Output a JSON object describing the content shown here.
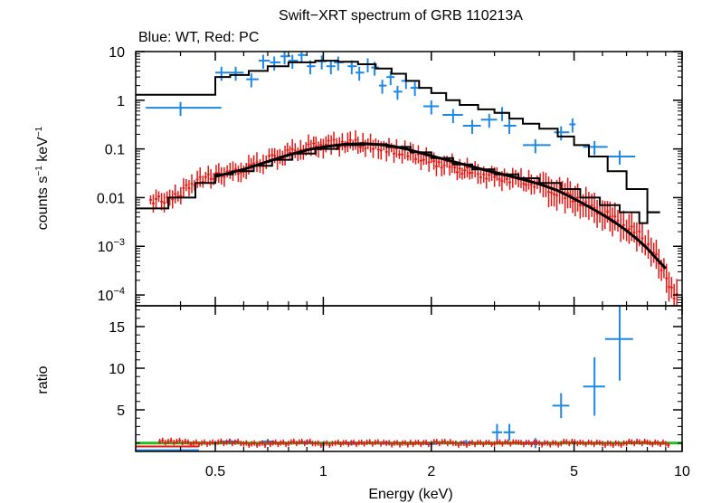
{
  "title": "Swift−XRT spectrum of GRB 110213A",
  "subtitle": "Blue: WT, Red: PC",
  "colors": {
    "wt": "#1e88e5",
    "pc": "#e8140f",
    "model": "#000000",
    "unity": "#22bb22",
    "axis": "#000000"
  },
  "chart_data": [
    {
      "type": "scatter",
      "panel": "spectrum",
      "xlabel": "Energy (keV)",
      "ylabel_main": "counts s",
      "ylabel_sup1": "−1",
      "ylabel_mid": " keV",
      "ylabel_sup2": "−1",
      "xscale": "log",
      "yscale": "log",
      "xlim": [
        0.3,
        10
      ],
      "ylim": [
        6e-05,
        10
      ],
      "yticks": [
        {
          "v": 10,
          "label": "10"
        },
        {
          "v": 1,
          "label": "1"
        },
        {
          "v": 0.1,
          "label": "0.1"
        },
        {
          "v": 0.01,
          "label": "0.01"
        },
        {
          "v": 0.001,
          "base": "10",
          "exp": "−3"
        },
        {
          "v": 0.0001,
          "base": "10",
          "exp": "−4"
        }
      ],
      "series": [
        {
          "name": "WT",
          "x": [
            0.4,
            0.52,
            0.57,
            0.63,
            0.68,
            0.73,
            0.78,
            0.82,
            0.87,
            0.92,
            0.99,
            1.05,
            1.1,
            1.2,
            1.26,
            1.33,
            1.39,
            1.46,
            1.54,
            1.61,
            1.7,
            1.8,
            2.0,
            2.3,
            2.6,
            2.9,
            3.15,
            3.3,
            3.9,
            4.6,
            4.95,
            5.7,
            6.7
          ],
          "y": [
            0.7,
            3.7,
            3.7,
            2.7,
            6.5,
            6.0,
            8.0,
            6.5,
            8.5,
            5.0,
            6.3,
            5.0,
            6.0,
            5.0,
            3.7,
            5.5,
            4.7,
            2.0,
            3.0,
            1.5,
            2.5,
            1.8,
            0.75,
            0.5,
            0.3,
            0.4,
            0.55,
            0.3,
            0.12,
            0.22,
            0.32,
            0.11,
            0.07
          ],
          "xerr_lo": [
            0.08,
            0.02,
            0.02,
            0.02,
            0.02,
            0.02,
            0.02,
            0.02,
            0.02,
            0.02,
            0.03,
            0.03,
            0.03,
            0.03,
            0.03,
            0.03,
            0.03,
            0.03,
            0.04,
            0.04,
            0.05,
            0.05,
            0.1,
            0.15,
            0.15,
            0.15,
            0.12,
            0.12,
            0.3,
            0.2,
            0.1,
            0.4,
            0.6
          ],
          "xerr_hi": [
            0.12,
            0.03,
            0.03,
            0.03,
            0.03,
            0.03,
            0.03,
            0.03,
            0.03,
            0.03,
            0.03,
            0.03,
            0.04,
            0.04,
            0.04,
            0.04,
            0.04,
            0.04,
            0.04,
            0.05,
            0.05,
            0.06,
            0.1,
            0.15,
            0.15,
            0.15,
            0.12,
            0.15,
            0.4,
            0.25,
            0.1,
            0.5,
            0.7
          ],
          "yerr_frac": 0.32
        },
        {
          "name": "PC",
          "x": [
            0.33,
            0.38,
            0.43,
            0.47,
            0.52,
            0.56,
            0.6,
            0.64,
            0.68,
            0.72,
            0.77,
            0.82,
            0.88,
            0.94,
            1.0,
            1.07,
            1.15,
            1.23,
            1.31,
            1.4,
            1.5,
            1.6,
            1.72,
            1.84,
            1.97,
            2.1,
            2.25,
            2.4,
            2.6,
            2.8,
            3.0,
            3.25,
            3.5,
            3.8,
            4.1,
            4.4,
            4.8,
            5.2,
            5.6,
            6.0,
            6.5,
            7.0,
            7.6,
            8.2,
            8.9,
            9.5
          ],
          "y": [
            0.009,
            0.009,
            0.02,
            0.025,
            0.03,
            0.032,
            0.038,
            0.045,
            0.055,
            0.065,
            0.075,
            0.085,
            0.1,
            0.11,
            0.12,
            0.13,
            0.13,
            0.13,
            0.12,
            0.11,
            0.1,
            0.09,
            0.08,
            0.07,
            0.058,
            0.05,
            0.045,
            0.038,
            0.033,
            0.03,
            0.026,
            0.025,
            0.022,
            0.02,
            0.017,
            0.013,
            0.011,
            0.008,
            0.006,
            0.005,
            0.0035,
            0.0025,
            0.0017,
            0.0009,
            0.0003,
            0.0001
          ],
          "yerr_frac": 0.35
        },
        {
          "name": "model-WT",
          "type": "step",
          "x": [
            0.3,
            0.5,
            0.55,
            0.62,
            0.7,
            0.8,
            0.95,
            1.1,
            1.25,
            1.4,
            1.55,
            1.7,
            1.85,
            2.0,
            2.2,
            2.4,
            2.7,
            3.0,
            3.3,
            3.6,
            4.0,
            4.5,
            5.0,
            5.5,
            6.2,
            7.0,
            8.0
          ],
          "y": [
            1.3,
            3.0,
            3.3,
            4.0,
            5.0,
            6.0,
            6.5,
            6.2,
            5.5,
            4.5,
            3.5,
            2.5,
            1.8,
            1.4,
            1.0,
            0.8,
            0.65,
            0.55,
            0.42,
            0.33,
            0.26,
            0.18,
            0.12,
            0.07,
            0.035,
            0.015,
            0.005
          ]
        },
        {
          "name": "model-PC",
          "type": "step",
          "x": [
            0.3,
            0.37,
            0.44,
            0.5,
            0.56,
            0.64,
            0.72,
            0.82,
            0.95,
            1.1,
            1.3,
            1.5,
            1.75,
            2.0,
            2.3,
            2.6,
            3.0,
            3.5,
            4.0,
            4.6,
            5.2,
            5.9,
            6.7,
            7.6,
            8.0
          ],
          "y": [
            0.006,
            0.01,
            0.02,
            0.03,
            0.035,
            0.045,
            0.06,
            0.08,
            0.1,
            0.12,
            0.125,
            0.11,
            0.085,
            0.065,
            0.048,
            0.038,
            0.03,
            0.025,
            0.02,
            0.015,
            0.01,
            0.007,
            0.005,
            0.003,
            0.005
          ]
        },
        {
          "name": "model-PC-smooth",
          "type": "line",
          "x": [
            0.5,
            0.6,
            0.7,
            0.8,
            0.9,
            1.0,
            1.15,
            1.3,
            1.5,
            1.7,
            2.0,
            2.3,
            2.7,
            3.0,
            3.5,
            4.0,
            4.5,
            5.0,
            5.5,
            6.0,
            6.5,
            7.0,
            7.5,
            8.0,
            8.5,
            9.0
          ],
          "y": [
            0.027,
            0.038,
            0.055,
            0.075,
            0.095,
            0.11,
            0.125,
            0.128,
            0.12,
            0.1,
            0.072,
            0.055,
            0.04,
            0.033,
            0.025,
            0.019,
            0.014,
            0.0095,
            0.0065,
            0.0045,
            0.0031,
            0.0021,
            0.0014,
            0.0009,
            0.00055,
            0.00035
          ]
        }
      ]
    },
    {
      "type": "scatter",
      "panel": "ratio",
      "ylabel": "ratio",
      "xlabel": "Energy (keV)",
      "xscale": "log",
      "xlim": [
        0.3,
        10
      ],
      "ylim": [
        0,
        17.5
      ],
      "xticks": [
        {
          "v": 0.5,
          "label": "0.5"
        },
        {
          "v": 1,
          "label": "1"
        },
        {
          "v": 2,
          "label": "2"
        },
        {
          "v": 5,
          "label": "5"
        },
        {
          "v": 10,
          "label": "10"
        }
      ],
      "yticks": [
        {
          "v": 5,
          "label": "5"
        },
        {
          "v": 10,
          "label": "10"
        },
        {
          "v": 15,
          "label": "15"
        }
      ],
      "series": [
        {
          "name": "WT-ratio",
          "x": [
            3.05,
            3.3,
            3.9,
            4.6,
            5.7,
            6.7,
            0.55,
            0.7,
            0.9,
            1.2,
            1.5,
            2.0,
            2.5
          ],
          "y": [
            2.3,
            2.3,
            1.0,
            5.5,
            7.8,
            13.5,
            1.2,
            1.2,
            1.1,
            1.0,
            1.0,
            0.9,
            1.1
          ],
          "yerr": [
            1.0,
            1.0,
            0.6,
            1.5,
            3.5,
            5.0,
            0.3,
            0.3,
            0.3,
            0.3,
            0.3,
            0.3,
            0.3
          ],
          "xerr": [
            0.1,
            0.12,
            0.3,
            0.25,
            0.4,
            0.6,
            0.03,
            0.03,
            0.03,
            0.04,
            0.04,
            0.08,
            0.1
          ]
        },
        {
          "name": "PC-ratio",
          "x": [
            0.35,
            0.42,
            0.5,
            0.6,
            0.7,
            0.8,
            0.95,
            1.1,
            1.3,
            1.5,
            1.75,
            2.0,
            2.3,
            2.6,
            3.0,
            3.5,
            4.0,
            4.6,
            5.2,
            6.0,
            7.0,
            8.0,
            9.0
          ],
          "y": [
            1.2,
            1.0,
            1.1,
            0.9,
            1.0,
            1.1,
            0.9,
            1.0,
            1.05,
            0.95,
            1.0,
            1.1,
            0.9,
            1.0,
            1.05,
            1.0,
            0.95,
            1.1,
            1.0,
            0.9,
            1.1,
            1.0,
            0.9
          ]
        }
      ]
    }
  ]
}
